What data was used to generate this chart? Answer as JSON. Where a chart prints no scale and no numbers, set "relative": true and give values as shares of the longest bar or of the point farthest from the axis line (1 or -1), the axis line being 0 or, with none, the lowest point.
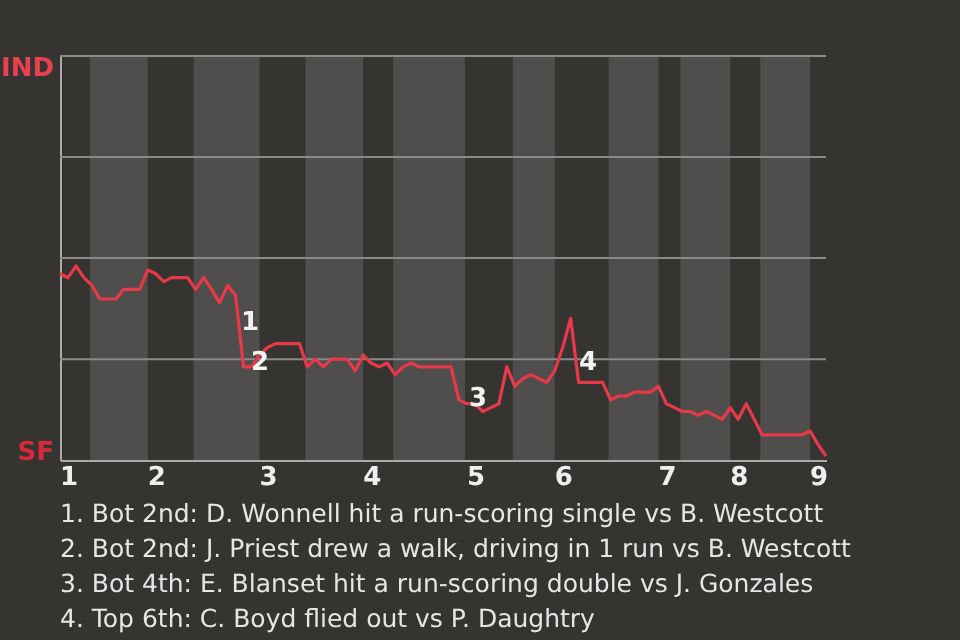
{
  "chart_data": {
    "type": "line",
    "categories": [
      null,
      "1",
      null,
      null,
      null,
      null,
      null,
      null,
      null,
      null,
      null,
      null,
      "2",
      null,
      null,
      null,
      null,
      null,
      null,
      null,
      null,
      null,
      null,
      null,
      null,
      null,
      "3",
      null,
      null,
      null,
      null,
      null,
      null,
      null,
      null,
      null,
      null,
      null,
      null,
      "4",
      null,
      null,
      null,
      null,
      null,
      null,
      null,
      null,
      null,
      null,
      null,
      null,
      "5",
      null,
      null,
      null,
      null,
      null,
      null,
      null,
      null,
      null,
      null,
      "6",
      null,
      null,
      null,
      null,
      null,
      null,
      null,
      null,
      null,
      null,
      null,
      null,
      "7",
      null,
      null,
      null,
      null,
      null,
      null,
      null,
      null,
      "8",
      null,
      null,
      null,
      null,
      null,
      null,
      null,
      null,
      null,
      "9",
      null
    ],
    "relative": true,
    "ref_lines": [
      {
        "axis": "y",
        "value": 0.52,
        "color": "#8a8a8a"
      }
    ],
    "series": [
      {
        "color": "#e8394a",
        "values": [
          0.96,
          0.94,
          1,
          0.94,
          0.9,
          0.83,
          0.83,
          0.83,
          0.88,
          0.88,
          0.88,
          0.98,
          0.96,
          0.92,
          0.94,
          0.94,
          0.94,
          0.88,
          0.94,
          0.88,
          0.81,
          0.9,
          0.85,
          0.48,
          0.48,
          0.54,
          0.58,
          0.6,
          0.6,
          0.6,
          0.6,
          0.48,
          0.52,
          0.48,
          0.52,
          0.52,
          0.52,
          0.46,
          0.54,
          0.5,
          0.48,
          0.5,
          0.44,
          0.48,
          0.5,
          0.48,
          0.48,
          0.48,
          0.48,
          0.48,
          0.31,
          0.29,
          0.29,
          0.25,
          0.27,
          0.29,
          0.48,
          0.38,
          0.42,
          0.44,
          0.42,
          0.4,
          0.46,
          0.58,
          0.73,
          0.4,
          0.4,
          0.4,
          0.4,
          0.31,
          0.33,
          0.33,
          0.35,
          0.35,
          0.35,
          0.38,
          0.29,
          0.27,
          0.25,
          0.25,
          0.23,
          0.25,
          0.23,
          0.21,
          0.27,
          0.21,
          0.29,
          0.21,
          0.13,
          0.13,
          0.13,
          0.13,
          0.13,
          0.13,
          0.15,
          0.08,
          0.02
        ]
      }
    ],
    "annotations": [
      "IND",
      "SF",
      "1",
      "2",
      "3",
      "4",
      "1. Bot 2nd: D. Wonnell hit a run-scoring single vs B. Westcott",
      "2. Bot 2nd: J. Priest drew a walk, driving in 1 run vs B. Westcott",
      "3. Bot 4th: E. Blanset hit a run-scoring double vs J. Gonzales",
      "4. Top 6th: C. Boyd flied out vs P. Daughtry"
    ]
  }
}
